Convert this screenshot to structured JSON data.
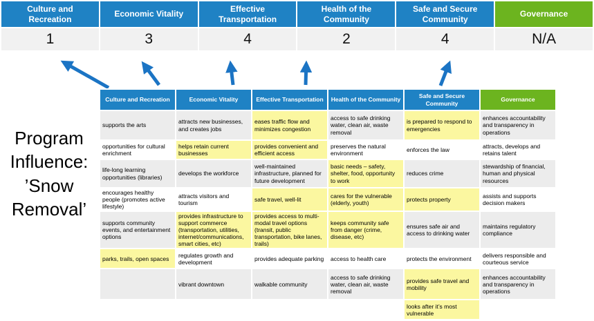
{
  "colors": {
    "blue": "#1F82C4",
    "green": "#6CB41F",
    "arrow": "#1B74C4",
    "row_gray": "#ECECEC",
    "highlight": "#FBF7A0",
    "score_bg": "#F1F1F1"
  },
  "program_title": "Program Influence: ’Snow Removal’",
  "banner": {
    "columns": [
      {
        "label": "Culture and Recreation",
        "score": "1",
        "color": "blue"
      },
      {
        "label": "Economic Vitality",
        "score": "3",
        "color": "blue"
      },
      {
        "label": "Effective Transportation",
        "score": "4",
        "color": "blue"
      },
      {
        "label": "Health of the Community",
        "score": "2",
        "color": "blue"
      },
      {
        "label": "Safe and Secure Community",
        "score": "4",
        "color": "blue"
      },
      {
        "label": "Governance",
        "score": "N/A",
        "color": "green"
      }
    ]
  },
  "matrix": {
    "headers": [
      {
        "label": "Culture and Recreation",
        "color": "blue"
      },
      {
        "label": "Economic Vitality",
        "color": "blue"
      },
      {
        "label": "Effective Transportation",
        "color": "blue"
      },
      {
        "label": "Health of the Community",
        "color": "blue"
      },
      {
        "label": "Safe and Secure Community",
        "color": "blue"
      },
      {
        "label": "Governance",
        "color": "green"
      }
    ],
    "rows": [
      {
        "cells": [
          {
            "text": "supports the arts",
            "highlight": false
          },
          {
            "text": "attracts new businesses, and creates jobs",
            "highlight": false
          },
          {
            "text": "eases traffic flow and minimizes congestion",
            "highlight": true
          },
          {
            "text": "access to safe drinking water, clean air, waste removal",
            "highlight": false
          },
          {
            "text": "is prepared to respond to emergencies",
            "highlight": true
          },
          {
            "text": "enhances accountability and transparency in operations",
            "highlight": false
          }
        ]
      },
      {
        "cells": [
          {
            "text": "opportunities for cultural enrichment",
            "highlight": false
          },
          {
            "text": "helps retain current businesses",
            "highlight": true
          },
          {
            "text": "provides convenient and efficient access",
            "highlight": true
          },
          {
            "text": "preserves the natural environment",
            "highlight": false
          },
          {
            "text": "enforces the law",
            "highlight": false
          },
          {
            "text": "attracts, develops and retains talent",
            "highlight": false
          }
        ]
      },
      {
        "cells": [
          {
            "text": "life-long learning opportunities (libraries)",
            "highlight": false
          },
          {
            "text": "develops the workforce",
            "highlight": false
          },
          {
            "text": "well-maintained infrastructure, planned for future development",
            "highlight": false
          },
          {
            "text": "basic needs – safety, shelter, food, opportunity to work",
            "highlight": true
          },
          {
            "text": "reduces crime",
            "highlight": false
          },
          {
            "text": "stewardship of financial, human and physical resources",
            "highlight": false
          }
        ]
      },
      {
        "cells": [
          {
            "text": "encourages healthy people (promotes active lifestyle)",
            "highlight": false
          },
          {
            "text": "attracts visitors and tourism",
            "highlight": false
          },
          {
            "text": "safe travel, well-lit",
            "highlight": true
          },
          {
            "text": "cares for the vulnerable (elderly, youth)",
            "highlight": true
          },
          {
            "text": "protects property",
            "highlight": true
          },
          {
            "text": "assists and supports decision makers",
            "highlight": false
          }
        ]
      },
      {
        "cells": [
          {
            "text": "supports community events, and entertainment options",
            "highlight": false
          },
          {
            "text": "provides infrastructure to support commerce (transportation, utilities, internet/communications, smart cities, etc)",
            "highlight": true
          },
          {
            "text": "provides access to multi-modal travel options (transit, public transportation, bike lanes, trails)",
            "highlight": true
          },
          {
            "text": "keeps community safe from danger (crime, disease, etc)",
            "highlight": true
          },
          {
            "text": "ensures safe air and access to drinking water",
            "highlight": false
          },
          {
            "text": "maintains regulatory compliance",
            "highlight": false
          }
        ]
      },
      {
        "cells": [
          {
            "text": "parks, trails, open spaces",
            "highlight": true
          },
          {
            "text": "regulates growth and development",
            "highlight": false
          },
          {
            "text": "provides adequate parking",
            "highlight": false
          },
          {
            "text": "access to health care",
            "highlight": false
          },
          {
            "text": "protects the environment",
            "highlight": false
          },
          {
            "text": "delivers responsible and courteous service",
            "highlight": false
          }
        ]
      },
      {
        "cells": [
          {
            "text": "",
            "highlight": false
          },
          {
            "text": "vibrant downtown",
            "highlight": false
          },
          {
            "text": "walkable community",
            "highlight": false
          },
          {
            "text": "access to safe drinking water, clean air, waste removal",
            "highlight": false
          },
          {
            "text": "provides safe travel and mobility",
            "highlight": true
          },
          {
            "text": "enhances accountability and transparency in operations",
            "highlight": false
          }
        ]
      },
      {
        "cells": [
          {
            "text": "",
            "highlight": false
          },
          {
            "text": "",
            "highlight": false
          },
          {
            "text": "",
            "highlight": false
          },
          {
            "text": "",
            "highlight": false
          },
          {
            "text": "looks after it’s most vulnerable",
            "highlight": true
          },
          {
            "text": "",
            "highlight": false
          }
        ]
      }
    ]
  }
}
